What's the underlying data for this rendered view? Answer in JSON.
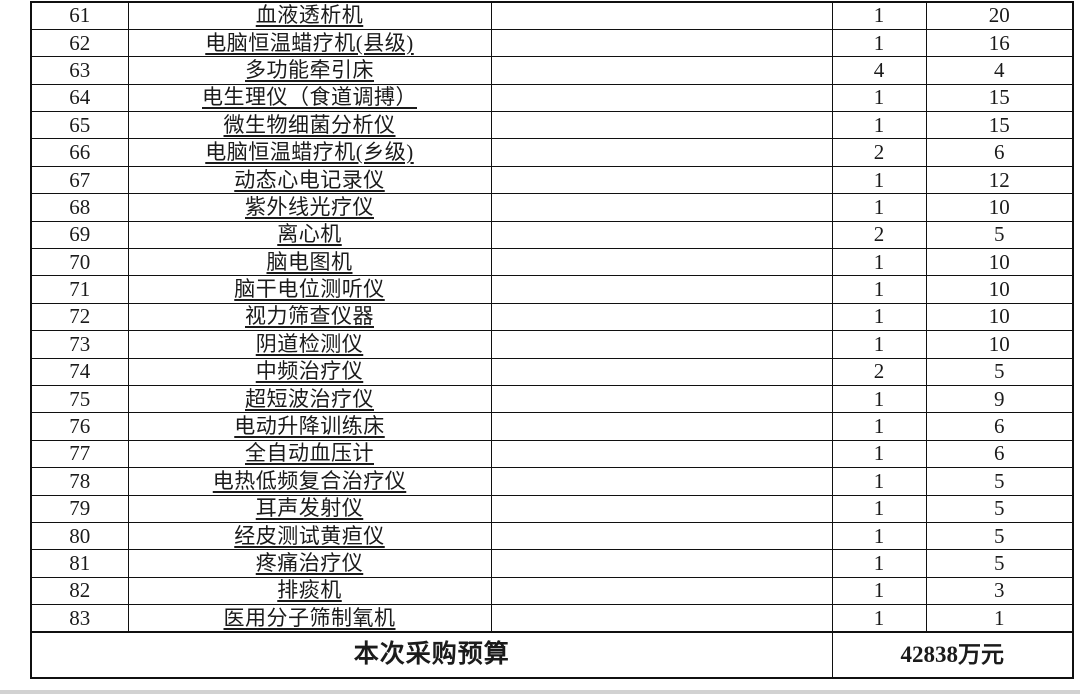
{
  "table": {
    "rows": [
      {
        "no": "61",
        "name": "血液透析机",
        "qty": "1",
        "val": "20"
      },
      {
        "no": "62",
        "name": "电脑恒温蜡疗机(县级)",
        "qty": "1",
        "val": "16"
      },
      {
        "no": "63",
        "name": "多功能牵引床",
        "qty": "4",
        "val": "4"
      },
      {
        "no": "64",
        "name": "电生理仪（食道调搏）",
        "qty": "1",
        "val": "15"
      },
      {
        "no": "65",
        "name": "微生物细菌分析仪",
        "qty": "1",
        "val": "15"
      },
      {
        "no": "66",
        "name": "电脑恒温蜡疗机(乡级)",
        "qty": "2",
        "val": "6"
      },
      {
        "no": "67",
        "name": "动态心电记录仪",
        "qty": "1",
        "val": "12"
      },
      {
        "no": "68",
        "name": "紫外线光疗仪",
        "qty": "1",
        "val": "10"
      },
      {
        "no": "69",
        "name": "离心机",
        "qty": "2",
        "val": "5"
      },
      {
        "no": "70",
        "name": "脑电图机",
        "qty": "1",
        "val": "10"
      },
      {
        "no": "71",
        "name": "脑干电位测听仪",
        "qty": "1",
        "val": "10"
      },
      {
        "no": "72",
        "name": "视力筛查仪器",
        "qty": "1",
        "val": "10"
      },
      {
        "no": "73",
        "name": "阴道检测仪",
        "qty": "1",
        "val": "10"
      },
      {
        "no": "74",
        "name": "中频治疗仪",
        "qty": "2",
        "val": "5"
      },
      {
        "no": "75",
        "name": "超短波治疗仪",
        "qty": "1",
        "val": "9"
      },
      {
        "no": "76",
        "name": "电动升降训练床",
        "qty": "1",
        "val": "6"
      },
      {
        "no": "77",
        "name": "全自动血压计",
        "qty": "1",
        "val": "6"
      },
      {
        "no": "78",
        "name": "电热低频复合治疗仪",
        "qty": "1",
        "val": "5"
      },
      {
        "no": "79",
        "name": "耳声发射仪",
        "qty": "1",
        "val": "5"
      },
      {
        "no": "80",
        "name": "经皮测试黄疸仪",
        "qty": "1",
        "val": "5"
      },
      {
        "no": "81",
        "name": "疼痛治疗仪",
        "qty": "1",
        "val": "5"
      },
      {
        "no": "82",
        "name": "排痰机",
        "qty": "1",
        "val": "3"
      },
      {
        "no": "83",
        "name": "医用分子筛制氧机",
        "qty": "1",
        "val": "1"
      }
    ],
    "footer": {
      "label": "本次采购预算",
      "total": "42838万元"
    }
  },
  "colors": {
    "border": "#101010",
    "text": "#1b1b1b",
    "page_edge": "#d2d2d2"
  }
}
